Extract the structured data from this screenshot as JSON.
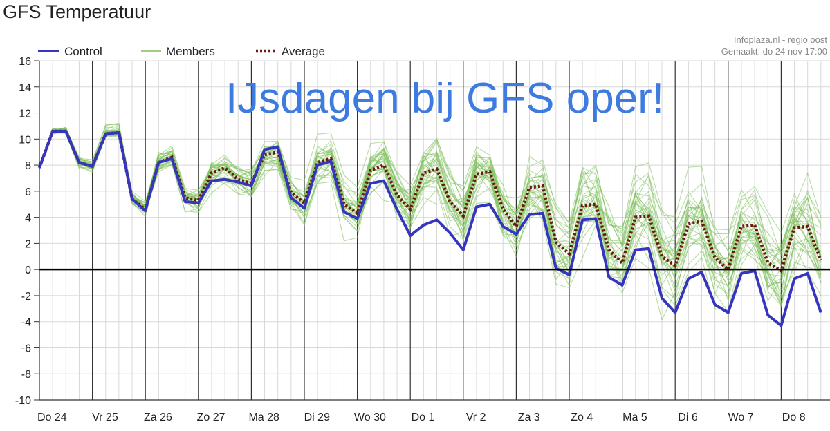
{
  "title": "GFS Temperatuur",
  "source_line1": "Infoplaza.nl - regio oost",
  "source_line2": "Gemaakt: do 24 nov 17:00",
  "annotation": "IJsdagen bij GFS oper!",
  "colors": {
    "control": "#3535c0",
    "members": "#7cbf5a",
    "average": "#6b1a0e",
    "grid": "#d8d8d8",
    "day_line": "#333333"
  },
  "chart_data": {
    "type": "line",
    "xlabel": "",
    "ylabel": "",
    "ylim": [
      -10,
      16
    ],
    "yticks": [
      16,
      14,
      12,
      10,
      8,
      6,
      4,
      2,
      0,
      -2,
      -4,
      -6,
      -8,
      -10
    ],
    "days": [
      "Do 24",
      "Vr 25",
      "Za 26",
      "Zo 27",
      "Ma 28",
      "Di 29",
      "Wo 30",
      "Do 1",
      "Vr 2",
      "Za 3",
      "Zo 4",
      "Ma 5",
      "Di 6",
      "Wo 7",
      "Do 8"
    ],
    "steps_per_day": 4,
    "grid": true,
    "legend": {
      "position": "top-left",
      "entries": [
        "Control",
        "Members",
        "Average"
      ]
    },
    "series": [
      {
        "name": "Control",
        "values": [
          7.8,
          10.6,
          10.6,
          8.2,
          7.9,
          10.4,
          10.5,
          5.4,
          4.5,
          8.2,
          8.5,
          5.2,
          5.1,
          6.8,
          6.9,
          6.7,
          6.4,
          9.2,
          9.4,
          5.5,
          4.7,
          8.0,
          8.3,
          4.4,
          3.9,
          6.6,
          6.8,
          4.6,
          2.6,
          3.4,
          3.8,
          2.8,
          1.5,
          4.8,
          5.0,
          3.3,
          2.7,
          4.2,
          4.3,
          0.1,
          -0.4,
          3.8,
          3.9,
          -0.6,
          -1.2,
          1.5,
          1.6,
          -2.2,
          -3.3,
          -0.7,
          -0.2,
          -2.7,
          -3.3,
          -0.3,
          -0.1,
          -3.5,
          -4.3,
          -0.7,
          -0.3,
          -3.3
        ]
      },
      {
        "name": "Average",
        "values": [
          7.8,
          10.6,
          10.6,
          8.2,
          7.9,
          10.4,
          10.5,
          5.4,
          4.6,
          8.2,
          8.6,
          5.5,
          5.3,
          7.4,
          7.8,
          6.9,
          6.6,
          8.8,
          9.0,
          5.9,
          5.1,
          8.2,
          8.5,
          5.0,
          4.3,
          7.6,
          8.0,
          5.7,
          4.6,
          7.4,
          7.7,
          5.2,
          4.1,
          7.3,
          7.5,
          4.6,
          3.3,
          6.3,
          6.4,
          2.1,
          1.2,
          4.9,
          5.0,
          1.5,
          0.5,
          4.0,
          4.1,
          1.0,
          0.3,
          3.5,
          3.7,
          0.9,
          0.0,
          3.3,
          3.4,
          0.5,
          -0.1,
          3.2,
          3.3,
          0.7
        ]
      }
    ]
  }
}
